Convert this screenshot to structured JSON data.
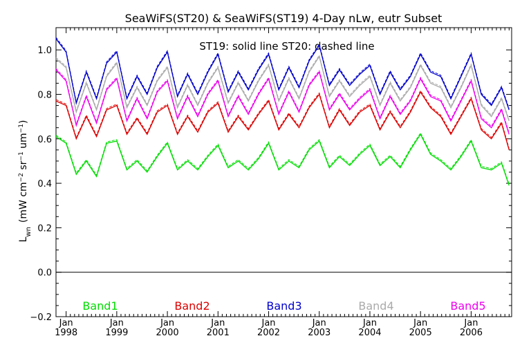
{
  "chart_data": {
    "type": "line",
    "title": "SeaWiFS(ST20) & SeaWiFS(ST19) 4-Day nLw, eutr Subset",
    "annotation": "ST19: solid line   ST20: dashed line",
    "ylabel": {
      "main": "L",
      "main_sub": "wn",
      "units_open": "(mW cm",
      "exp1": "−2",
      "mid1": " sr",
      "exp2": "−1",
      "mid2": " um",
      "exp3": "−1",
      "units_close": ")"
    },
    "xlabel": "",
    "ylim": [
      -0.2,
      1.1
    ],
    "xlim": [
      1997.8,
      2006.8
    ],
    "yticks": [
      -0.2,
      0.0,
      0.2,
      0.4,
      0.6,
      0.8,
      1.0
    ],
    "ytick_labels": [
      "−0.2",
      "0.0",
      "0.2",
      "0.4",
      "0.6",
      "0.8",
      "1.0"
    ],
    "xticks": [
      {
        "x": 1998,
        "month": "Jan",
        "year": "1998"
      },
      {
        "x": 1999,
        "month": "Jan",
        "year": "1999"
      },
      {
        "x": 2000,
        "month": "Jan",
        "year": "2000"
      },
      {
        "x": 2001,
        "month": "Jan",
        "year": "2001"
      },
      {
        "x": 2002,
        "month": "Jan",
        "year": "2002"
      },
      {
        "x": 2003,
        "month": "Jan",
        "year": "2003"
      },
      {
        "x": 2004,
        "month": "Jan",
        "year": "2004"
      },
      {
        "x": 2005,
        "month": "Jan",
        "year": "2005"
      },
      {
        "x": 2006,
        "month": "Jan",
        "year": "2006"
      }
    ],
    "reference_line": 0.0,
    "x": [
      1997.8,
      1998.0,
      1998.2,
      1998.4,
      1998.6,
      1998.8,
      1999.0,
      1999.2,
      1999.4,
      1999.6,
      1999.8,
      2000.0,
      2000.2,
      2000.4,
      2000.6,
      2000.8,
      2001.0,
      2001.2,
      2001.4,
      2001.6,
      2001.8,
      2002.0,
      2002.2,
      2002.4,
      2002.6,
      2002.8,
      2003.0,
      2003.2,
      2003.4,
      2003.6,
      2003.8,
      2004.0,
      2004.2,
      2004.4,
      2004.6,
      2004.8,
      2005.0,
      2005.2,
      2005.4,
      2005.6,
      2005.8,
      2006.0,
      2006.2,
      2006.4,
      2006.6,
      2006.75
    ],
    "series": [
      {
        "name": "Band1",
        "color": "#00dd00",
        "values": [
          0.61,
          0.58,
          0.44,
          0.5,
          0.43,
          0.58,
          0.59,
          0.46,
          0.5,
          0.45,
          0.52,
          0.58,
          0.46,
          0.5,
          0.46,
          0.52,
          0.57,
          0.47,
          0.5,
          0.46,
          0.51,
          0.58,
          0.46,
          0.5,
          0.47,
          0.55,
          0.59,
          0.47,
          0.52,
          0.48,
          0.53,
          0.57,
          0.48,
          0.52,
          0.47,
          0.55,
          0.62,
          0.53,
          0.5,
          0.46,
          0.52,
          0.59,
          0.47,
          0.46,
          0.49,
          0.39
        ]
      },
      {
        "name": "Band2",
        "color": "#dd0000",
        "values": [
          0.77,
          0.75,
          0.6,
          0.7,
          0.61,
          0.73,
          0.75,
          0.62,
          0.69,
          0.62,
          0.72,
          0.75,
          0.62,
          0.7,
          0.63,
          0.72,
          0.76,
          0.63,
          0.7,
          0.64,
          0.71,
          0.77,
          0.64,
          0.71,
          0.65,
          0.74,
          0.8,
          0.65,
          0.73,
          0.66,
          0.72,
          0.75,
          0.64,
          0.72,
          0.65,
          0.72,
          0.81,
          0.74,
          0.7,
          0.62,
          0.7,
          0.78,
          0.64,
          0.6,
          0.67,
          0.55
        ]
      },
      {
        "name": "Band3",
        "color": "#0000cc",
        "values": [
          1.05,
          0.99,
          0.76,
          0.9,
          0.78,
          0.94,
          0.99,
          0.78,
          0.88,
          0.8,
          0.92,
          0.99,
          0.79,
          0.89,
          0.8,
          0.9,
          0.98,
          0.81,
          0.9,
          0.82,
          0.91,
          0.98,
          0.82,
          0.92,
          0.83,
          0.95,
          1.02,
          0.84,
          0.91,
          0.84,
          0.89,
          0.93,
          0.8,
          0.9,
          0.82,
          0.88,
          0.98,
          0.9,
          0.88,
          0.78,
          0.88,
          0.98,
          0.8,
          0.75,
          0.83,
          0.73
        ]
      },
      {
        "name": "Band4",
        "color": "#aaaaaa",
        "values": [
          0.96,
          0.92,
          0.72,
          0.85,
          0.73,
          0.88,
          0.94,
          0.74,
          0.83,
          0.75,
          0.86,
          0.92,
          0.74,
          0.84,
          0.75,
          0.85,
          0.92,
          0.76,
          0.85,
          0.77,
          0.86,
          0.93,
          0.77,
          0.87,
          0.78,
          0.9,
          0.97,
          0.79,
          0.86,
          0.79,
          0.84,
          0.88,
          0.75,
          0.85,
          0.77,
          0.83,
          0.93,
          0.85,
          0.83,
          0.74,
          0.83,
          0.93,
          0.75,
          0.7,
          0.78,
          0.68
        ]
      },
      {
        "name": "Band5",
        "color": "#ee00ee",
        "values": [
          0.91,
          0.86,
          0.66,
          0.79,
          0.67,
          0.82,
          0.87,
          0.68,
          0.78,
          0.69,
          0.81,
          0.86,
          0.69,
          0.79,
          0.7,
          0.8,
          0.86,
          0.7,
          0.79,
          0.71,
          0.8,
          0.87,
          0.71,
          0.81,
          0.72,
          0.84,
          0.9,
          0.73,
          0.8,
          0.73,
          0.78,
          0.82,
          0.69,
          0.79,
          0.71,
          0.77,
          0.87,
          0.79,
          0.77,
          0.68,
          0.77,
          0.86,
          0.69,
          0.65,
          0.73,
          0.62
        ]
      }
    ],
    "grid": false,
    "legend_position": "bottom"
  }
}
